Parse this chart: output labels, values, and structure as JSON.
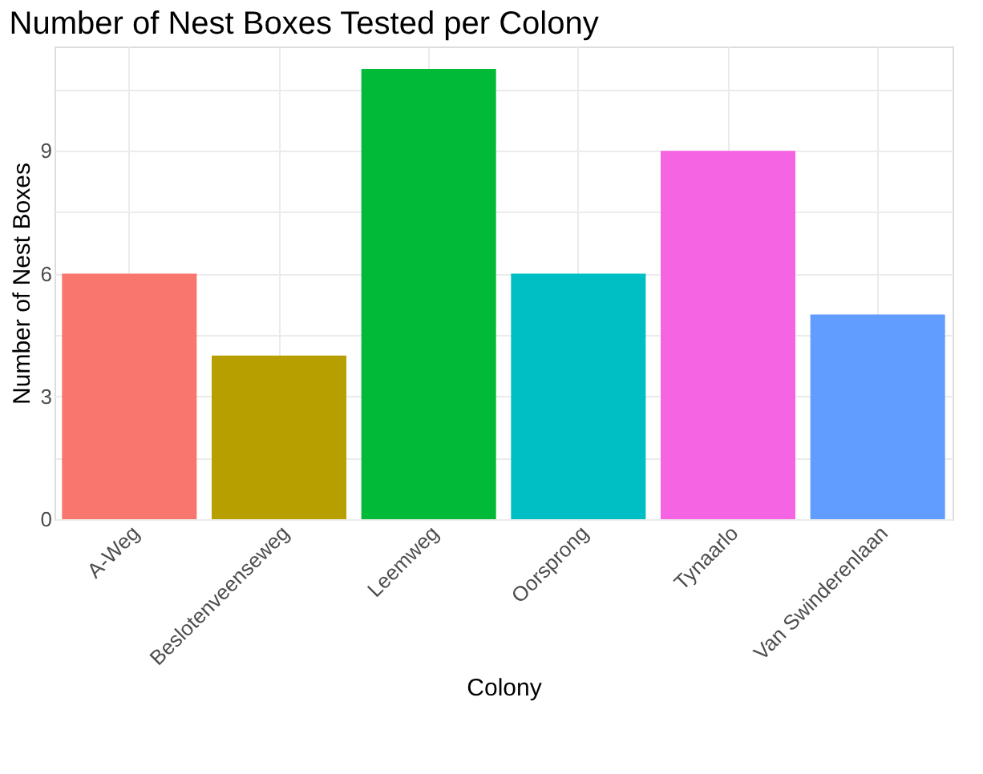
{
  "chart_data": {
    "type": "bar",
    "title": "Number of Nest Boxes Tested per Colony",
    "xlabel": "Colony",
    "ylabel": "Number of Nest Boxes",
    "categories": [
      "A-Weg",
      "Beslotenveenseweg",
      "Leemweg",
      "Oorsprong",
      "Tynaarlo",
      "Van Swinderenlaan"
    ],
    "values": [
      6,
      4,
      11,
      6,
      9,
      5
    ],
    "colors": [
      "#f8766d",
      "#b79f00",
      "#00ba38",
      "#00bfc4",
      "#f564e3",
      "#619cff"
    ],
    "ylim": [
      0,
      11.55
    ],
    "yticks": [
      0,
      {
        "value": 1.5,
        "label": null
      },
      3,
      {
        "value": 4.5,
        "label": null
      },
      6,
      {
        "value": 7.5,
        "label": null
      },
      9,
      {
        "value": 10.5,
        "label": null
      }
    ],
    "grid": true,
    "legend": false
  }
}
